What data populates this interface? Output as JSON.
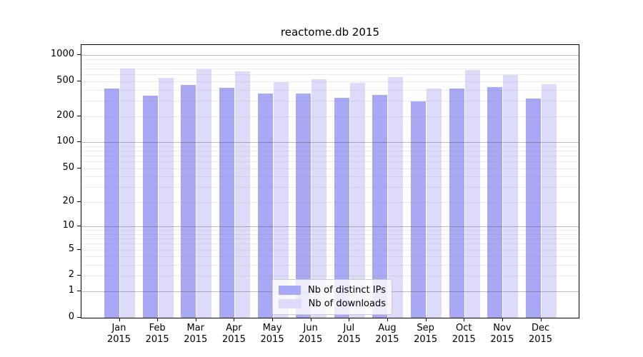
{
  "chart_data": {
    "type": "bar",
    "title": "reactome.db 2015",
    "categories": [
      "Jan",
      "Feb",
      "Mar",
      "Apr",
      "May",
      "Jun",
      "Jul",
      "Aug",
      "Sep",
      "Oct",
      "Nov",
      "Dec"
    ],
    "category_year": "2015",
    "series": [
      {
        "name": "Nb of distinct IPs",
        "color": "#a8a8f5",
        "values": [
          410,
          340,
          450,
          425,
          360,
          360,
          325,
          350,
          295,
          415,
          430,
          320
        ]
      },
      {
        "name": "Nb of downloads",
        "color": "#dcdcfa",
        "values": [
          700,
          550,
          690,
          655,
          490,
          525,
          480,
          555,
          410,
          675,
          590,
          460
        ]
      }
    ],
    "xlabel": "",
    "ylabel": "",
    "yscale": "log1p",
    "ylim": [
      0,
      1300
    ],
    "yticks": [
      0,
      1,
      2,
      5,
      10,
      20,
      50,
      100,
      200,
      500,
      1000
    ],
    "grid": {
      "on": true,
      "major": [
        1,
        10,
        100,
        1000
      ],
      "minor": [
        2,
        3,
        4,
        5,
        6,
        7,
        8,
        9,
        20,
        30,
        40,
        50,
        60,
        70,
        80,
        90,
        200,
        300,
        400,
        500,
        600,
        700,
        800,
        900
      ]
    },
    "legend": {
      "position": "lower center inside",
      "entries": [
        "Nb of distinct IPs",
        "Nb of downloads"
      ]
    }
  }
}
